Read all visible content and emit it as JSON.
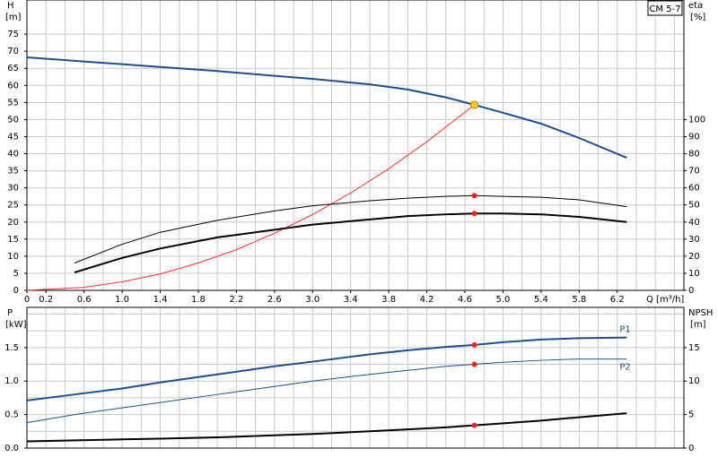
{
  "chart_data": [
    {
      "type": "line",
      "title": "CM 5-7",
      "ylabel": "H",
      "yunit": "[m]",
      "y2label": "eta",
      "y2unit": "[%]",
      "xlabel": "Q [m³/h]",
      "xlim": [
        0,
        6.9
      ],
      "xticks": [
        0,
        0.2,
        0.6,
        {
          "value": 1,
          "label": "1.0"
        },
        1.4,
        1.8,
        2.2,
        2.6,
        {
          "value": 3,
          "label": "3.0"
        },
        3.4,
        3.8,
        4.2,
        4.6,
        {
          "value": 5,
          "label": "5.0"
        },
        5.4,
        5.8,
        6.2
      ],
      "xgrid": [
        0,
        0.2,
        0.4,
        0.6,
        0.8,
        1,
        1.2,
        1.4,
        1.6,
        1.8,
        2,
        2.2,
        2.4,
        2.6,
        2.8,
        3,
        3.2,
        3.4,
        3.6,
        3.8,
        4,
        4.2,
        4.4,
        4.6,
        4.8,
        5,
        5.2,
        5.4,
        5.6,
        5.8,
        6,
        6.2,
        6.4,
        6.6,
        6.8
      ],
      "ylim": [
        0,
        85
      ],
      "yticks": [
        0,
        5,
        10,
        15,
        20,
        25,
        30,
        35,
        40,
        45,
        50,
        55,
        60,
        65,
        70,
        75
      ],
      "y2lim": [
        0,
        170
      ],
      "y2ticks": [
        0,
        10,
        20,
        30,
        40,
        50,
        60,
        70,
        80,
        90,
        100
      ],
      "duty_point_x": 4.7,
      "series": [
        {
          "color": "#1f4e8c",
          "width": 2,
          "marker_color": "#ffd21f",
          "x": [
            0,
            1,
            1.4,
            2,
            2.6,
            3,
            3.6,
            4,
            4.4,
            4.7,
            5,
            5.4,
            5.8,
            6.3
          ],
          "values": [
            68.2,
            66.2,
            65.4,
            64.2,
            62.8,
            61.9,
            60.3,
            58.8,
            56.5,
            54.3,
            52,
            48.8,
            44.6,
            38.8
          ]
        },
        {
          "color": "#ff3030",
          "width": 1,
          "x": [
            0,
            0.6,
            1,
            1.4,
            1.8,
            2.2,
            2.6,
            3,
            3.4,
            3.8,
            4.2,
            4.7
          ],
          "values": [
            0,
            0.9,
            2.5,
            4.8,
            8,
            11.9,
            16.7,
            22.2,
            28.5,
            35.6,
            43.5,
            54.3
          ]
        },
        {
          "color": "#000000",
          "width": 1,
          "axis": "y2",
          "marker_color": "#ff2020",
          "x": [
            0.5,
            1,
            1.4,
            2,
            2.6,
            3,
            3.6,
            4,
            4.4,
            4.7,
            5,
            5.4,
            5.8,
            6.3
          ],
          "values": [
            16,
            27,
            34,
            41,
            46.5,
            49.5,
            52.5,
            54,
            55,
            55.5,
            55,
            54.5,
            53,
            49
          ]
        },
        {
          "color": "#000000",
          "width": 2,
          "axis": "y2",
          "marker_color": "#ff2020",
          "x": [
            0.5,
            1,
            1.4,
            2,
            2.6,
            3,
            3.6,
            4,
            4.4,
            4.7,
            5,
            5.4,
            5.8,
            6.3
          ],
          "values": [
            10.5,
            19,
            24.5,
            31,
            35.5,
            38.5,
            41.5,
            43.5,
            44.5,
            45,
            45,
            44.5,
            43,
            40
          ]
        }
      ]
    },
    {
      "type": "line",
      "ylabel": "P",
      "yunit": "[kW]",
      "y2label": "NPSH",
      "y2unit": "[m]",
      "xlim": [
        0,
        6.9
      ],
      "xgrid": [
        0,
        0.2,
        0.4,
        0.6,
        0.8,
        1,
        1.2,
        1.4,
        1.6,
        1.8,
        2,
        2.2,
        2.4,
        2.6,
        2.8,
        3,
        3.2,
        3.4,
        3.6,
        3.8,
        4,
        4.2,
        4.4,
        4.6,
        4.8,
        5,
        5.2,
        5.4,
        5.6,
        5.8,
        6,
        6.2,
        6.4,
        6.6,
        6.8
      ],
      "ylim": [
        0,
        2.1
      ],
      "yticks": [
        {
          "value": 0,
          "label": "0.0"
        },
        0.5,
        {
          "value": 1,
          "label": "1.0"
        },
        1.5
      ],
      "ygrid": [
        0,
        0.25,
        0.5,
        0.75,
        1,
        1.25,
        1.5,
        1.75,
        2
      ],
      "y2lim": [
        0,
        21
      ],
      "y2ticks": [
        0,
        5,
        10,
        15
      ],
      "duty_point_x": 4.7,
      "series": [
        {
          "name": "P1",
          "color": "#1f4e8c",
          "width": 2,
          "marker_color": "#ff2020",
          "x": [
            0,
            0.5,
            1,
            1.4,
            2,
            2.6,
            3,
            3.6,
            4,
            4.4,
            4.7,
            5,
            5.4,
            5.8,
            6.3
          ],
          "values": [
            0.71,
            0.8,
            0.89,
            0.98,
            1.1,
            1.22,
            1.29,
            1.4,
            1.46,
            1.51,
            1.54,
            1.58,
            1.62,
            1.64,
            1.65
          ]
        },
        {
          "name": "P2",
          "color": "#1f4e8c",
          "width": 1,
          "marker_color": "#ff2020",
          "x": [
            0,
            0.5,
            1,
            1.4,
            2,
            2.6,
            3,
            3.6,
            4,
            4.4,
            4.7,
            5,
            5.4,
            5.8,
            6.3
          ],
          "values": [
            0.38,
            0.5,
            0.6,
            0.68,
            0.8,
            0.92,
            1,
            1.1,
            1.16,
            1.22,
            1.25,
            1.28,
            1.31,
            1.33,
            1.33
          ]
        },
        {
          "color": "#000000",
          "width": 2,
          "axis": "y2",
          "marker_color": "#ff2020",
          "x": [
            0,
            1,
            1.4,
            2,
            2.6,
            3,
            3.6,
            4,
            4.4,
            4.7,
            5,
            5.4,
            5.8,
            6.3
          ],
          "values": [
            1,
            1.3,
            1.4,
            1.6,
            1.9,
            2.1,
            2.5,
            2.8,
            3.1,
            3.4,
            3.7,
            4.1,
            4.6,
            5.2
          ]
        }
      ]
    }
  ]
}
